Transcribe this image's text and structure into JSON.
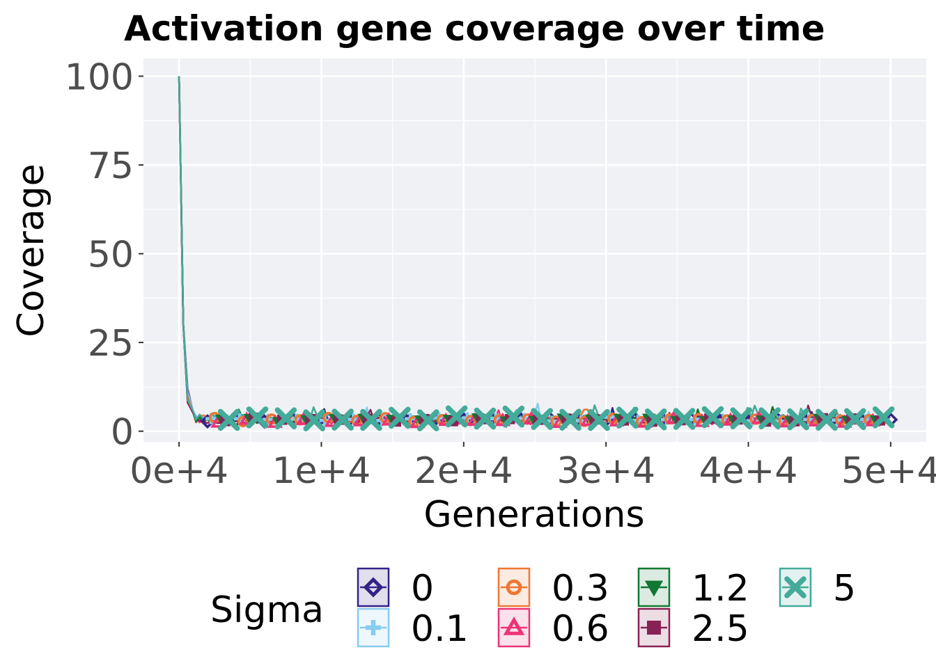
{
  "chart_data": {
    "type": "line",
    "title": "Activation gene coverage over time",
    "xlabel": "Generations",
    "ylabel": "Coverage",
    "xlim": [
      -2500,
      52500
    ],
    "ylim": [
      -3,
      105
    ],
    "x_ticks": [
      0,
      10000,
      20000,
      30000,
      40000,
      50000
    ],
    "x_tick_labels": [
      "0e+4",
      "1e+4",
      "2e+4",
      "3e+4",
      "4e+4",
      "5e+4"
    ],
    "y_ticks": [
      0,
      25,
      50,
      75,
      100
    ],
    "y_tick_labels": [
      "0",
      "25",
      "50",
      "75",
      "100"
    ],
    "grid": true,
    "panel_background": "#f0f1f5",
    "legend": {
      "title": "Sigma",
      "position": "bottom"
    },
    "series": [
      {
        "name": "0",
        "color": "#332288",
        "shape": "diamond",
        "initial": 100,
        "level": 3.2
      },
      {
        "name": "0.1",
        "color": "#88ccee",
        "shape": "plus",
        "initial": 100,
        "level": 3.4
      },
      {
        "name": "0.3",
        "color": "#ee7733",
        "shape": "circle",
        "initial": 100,
        "level": 3.3
      },
      {
        "name": "0.6",
        "color": "#ee3377",
        "shape": "triangle",
        "initial": 100,
        "level": 3.0
      },
      {
        "name": "1.2",
        "color": "#117733",
        "shape": "triangle-down",
        "initial": 100,
        "level": 3.1
      },
      {
        "name": "2.5",
        "color": "#882255",
        "shape": "square",
        "initial": 100,
        "level": 3.2
      },
      {
        "name": "5",
        "color": "#44aa99",
        "shape": "cross",
        "initial": 100,
        "level": 3.6
      }
    ]
  }
}
